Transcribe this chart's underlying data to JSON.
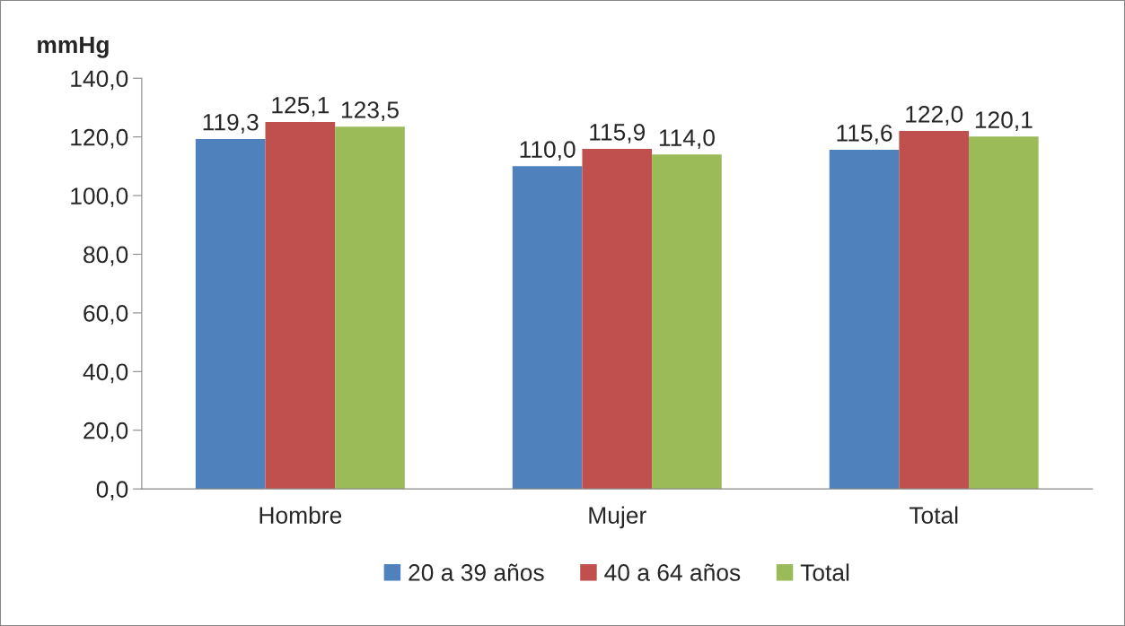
{
  "chart_data": {
    "type": "bar",
    "ylabel": "mmHg",
    "categories": [
      "Hombre",
      "Mujer",
      "Total"
    ],
    "series": [
      {
        "name": "20 a 39 años",
        "color": "#4f81bd",
        "values": [
          119.3,
          110.0,
          115.6
        ],
        "value_labels": [
          "119,3",
          "110,0",
          "115,6"
        ]
      },
      {
        "name": "40 a 64 años",
        "color": "#c0504d",
        "values": [
          125.1,
          115.9,
          122.0
        ],
        "value_labels": [
          "125,1",
          "115,9",
          "122,0"
        ]
      },
      {
        "name": "Total",
        "color": "#9bbb59",
        "values": [
          123.5,
          114.0,
          120.1
        ],
        "value_labels": [
          "123,5",
          "114,0",
          "120,1"
        ]
      }
    ],
    "ylim": [
      0,
      140
    ],
    "yticks": [
      {
        "value": 0,
        "label": "0,0"
      },
      {
        "value": 20,
        "label": "20,0"
      },
      {
        "value": 40,
        "label": "40,0"
      },
      {
        "value": 60,
        "label": "60,0"
      },
      {
        "value": 80,
        "label": "80,0"
      },
      {
        "value": 100,
        "label": "100,0"
      },
      {
        "value": 120,
        "label": "120,0"
      },
      {
        "value": 140,
        "label": "140,0"
      }
    ],
    "grid": false,
    "legend": "bottom"
  }
}
